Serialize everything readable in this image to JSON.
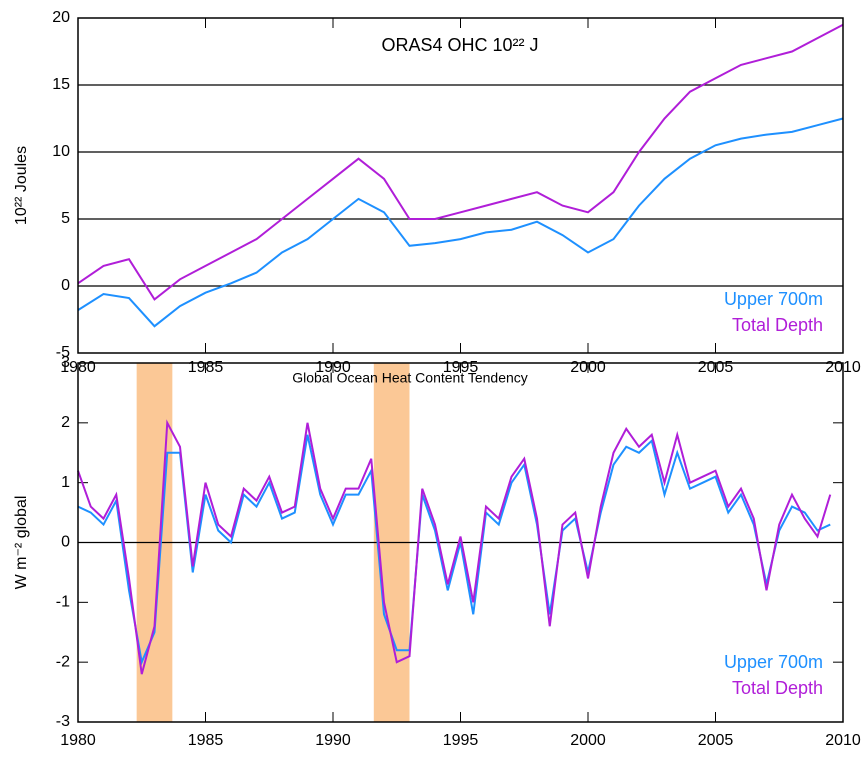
{
  "chart_data": [
    {
      "type": "line",
      "title": "ORAS4 OHC 10²² J",
      "y_label": "10²² Joules",
      "x": [
        1980,
        1981,
        1982,
        1983,
        1984,
        1985,
        1986,
        1987,
        1988,
        1989,
        1990,
        1991,
        1992,
        1993,
        1994,
        1995,
        1996,
        1997,
        1998,
        1999,
        2000,
        2001,
        2002,
        2003,
        2004,
        2005,
        2006,
        2007,
        2008,
        2009,
        2010
      ],
      "series": [
        {
          "name": "Upper 700m",
          "color": "#1e90ff",
          "values": [
            -1.8,
            -0.6,
            -0.9,
            -3.0,
            -1.5,
            -0.5,
            0.2,
            1.0,
            2.5,
            3.5,
            5.0,
            6.5,
            5.5,
            3.0,
            3.2,
            3.5,
            4.0,
            4.2,
            4.8,
            3.8,
            2.5,
            3.5,
            6.0,
            8.0,
            9.5,
            10.5,
            11.0,
            11.3,
            11.5,
            12.0,
            12.5
          ]
        },
        {
          "name": "Total Depth",
          "color": "#b01ed8",
          "values": [
            0.2,
            1.5,
            2.0,
            -1.0,
            0.5,
            1.5,
            2.5,
            3.5,
            5.0,
            6.5,
            8.0,
            9.5,
            8.0,
            5.0,
            5.0,
            5.5,
            6.0,
            6.5,
            7.0,
            6.0,
            5.5,
            7.0,
            10.0,
            12.5,
            14.5,
            15.5,
            16.5,
            17.0,
            17.5,
            18.5,
            19.5
          ]
        }
      ],
      "xlim": [
        1980,
        2010
      ],
      "xticks": [
        1980,
        1985,
        1990,
        1995,
        2000,
        2005,
        2010
      ],
      "ylim": [
        -5,
        20
      ],
      "yticks": [
        -5,
        0,
        5,
        10,
        15,
        20
      ],
      "grid": true,
      "legend": "lower right"
    },
    {
      "type": "line",
      "title": "Global Ocean Heat Content Tendency",
      "y_label": "W m⁻² global",
      "x": [
        1980,
        1980.5,
        1981,
        1981.5,
        1982,
        1982.5,
        1983,
        1983.5,
        1984,
        1984.5,
        1985,
        1985.5,
        1986,
        1986.5,
        1987,
        1987.5,
        1988,
        1988.5,
        1989,
        1989.5,
        1990,
        1990.5,
        1991,
        1991.5,
        1992,
        1992.5,
        1993,
        1993.5,
        1994,
        1994.5,
        1995,
        1995.5,
        1996,
        1996.5,
        1997,
        1997.5,
        1998,
        1998.5,
        1999,
        1999.5,
        2000,
        2000.5,
        2001,
        2001.5,
        2002,
        2002.5,
        2003,
        2003.5,
        2004,
        2004.5,
        2005,
        2005.5,
        2006,
        2006.5,
        2007,
        2007.5,
        2008,
        2008.5,
        2009,
        2009.5
      ],
      "series": [
        {
          "name": "Upper 700m",
          "color": "#1e90ff",
          "values": [
            0.6,
            0.5,
            0.3,
            0.7,
            -0.8,
            -2.0,
            -1.5,
            1.5,
            1.5,
            -0.5,
            0.8,
            0.2,
            0.0,
            0.8,
            0.6,
            1.0,
            0.4,
            0.5,
            1.8,
            0.8,
            0.3,
            0.8,
            0.8,
            1.2,
            -1.2,
            -1.8,
            -1.8,
            0.8,
            0.2,
            -0.8,
            0.0,
            -1.2,
            0.5,
            0.3,
            1.0,
            1.3,
            0.3,
            -1.2,
            0.2,
            0.4,
            -0.5,
            0.5,
            1.3,
            1.6,
            1.5,
            1.7,
            0.8,
            1.5,
            0.9,
            1.0,
            1.1,
            0.5,
            0.8,
            0.3,
            -0.7,
            0.2,
            0.6,
            0.5,
            0.2,
            0.3
          ]
        },
        {
          "name": "Total Depth",
          "color": "#b01ed8",
          "values": [
            1.2,
            0.6,
            0.4,
            0.8,
            -0.6,
            -2.2,
            -1.4,
            2.0,
            1.6,
            -0.4,
            1.0,
            0.3,
            0.1,
            0.9,
            0.7,
            1.1,
            0.5,
            0.6,
            2.0,
            0.9,
            0.4,
            0.9,
            0.9,
            1.4,
            -1.0,
            -2.0,
            -1.9,
            0.9,
            0.3,
            -0.7,
            0.1,
            -1.0,
            0.6,
            0.4,
            1.1,
            1.4,
            0.4,
            -1.4,
            0.3,
            0.5,
            -0.6,
            0.6,
            1.5,
            1.9,
            1.6,
            1.8,
            1.0,
            1.8,
            1.0,
            1.1,
            1.2,
            0.6,
            0.9,
            0.4,
            -0.8,
            0.3,
            0.8,
            0.4,
            0.1,
            0.8
          ]
        }
      ],
      "spans": [
        [
          1982.3,
          1983.7
        ],
        [
          1991.6,
          1993.0
        ]
      ],
      "span_color": "#fbc896",
      "xlim": [
        1980,
        2010
      ],
      "xticks": [
        1980,
        1985,
        1990,
        1995,
        2000,
        2005,
        2010
      ],
      "ylim": [
        -3,
        3
      ],
      "yticks": [
        -3,
        -2,
        -1,
        0,
        1,
        2,
        3
      ],
      "zero_line": true,
      "legend": "lower right"
    }
  ]
}
